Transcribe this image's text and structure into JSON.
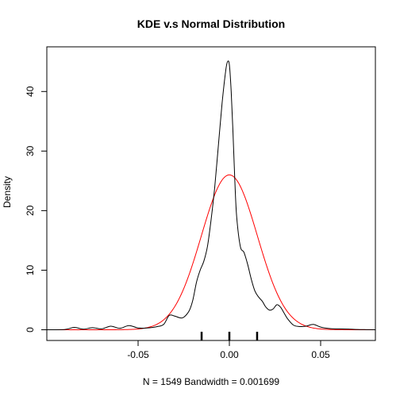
{
  "chart_data": {
    "type": "line",
    "title": "KDE v.s Normal Distribution",
    "xlabel": "N = 1549   Bandwidth = 0.001699",
    "ylabel": "Density",
    "xlim": [
      -0.1,
      0.08
    ],
    "ylim": [
      -1.8,
      47.5
    ],
    "xticks": [
      {
        "value": -0.05,
        "label": "-0.05"
      },
      {
        "value": 0.0,
        "label": "0.00"
      },
      {
        "value": 0.05,
        "label": "0.05"
      }
    ],
    "yticks": [
      {
        "value": 0,
        "label": "0"
      },
      {
        "value": 10,
        "label": "10"
      },
      {
        "value": 20,
        "label": "20"
      },
      {
        "value": 30,
        "label": "30"
      },
      {
        "value": 40,
        "label": "40"
      }
    ],
    "grid": false,
    "rug": [
      -0.0152,
      0.0,
      0.0152
    ],
    "series": [
      {
        "color": "#000000",
        "x": [
          -0.1,
          -0.09,
          -0.085,
          -0.08,
          -0.075,
          -0.07,
          -0.065,
          -0.06,
          -0.055,
          -0.05,
          -0.045,
          -0.04,
          -0.036,
          -0.033,
          -0.03,
          -0.027,
          -0.025,
          -0.022,
          -0.02,
          -0.018,
          -0.016,
          -0.014,
          -0.012,
          -0.01,
          -0.008,
          -0.006,
          -0.004,
          -0.002,
          -0.001,
          0.0,
          0.001,
          0.002,
          0.003,
          0.004,
          0.006,
          0.008,
          0.01,
          0.012,
          0.014,
          0.016,
          0.018,
          0.02,
          0.022,
          0.024,
          0.026,
          0.028,
          0.03,
          0.032,
          0.035,
          0.038,
          0.042,
          0.046,
          0.05,
          0.055,
          0.06,
          0.065,
          0.07,
          0.075,
          0.08
        ],
        "y": [
          0.0,
          0.05,
          0.4,
          0.1,
          0.35,
          0.15,
          0.6,
          0.25,
          0.7,
          0.3,
          0.3,
          0.5,
          0.9,
          2.4,
          2.3,
          2.0,
          2.1,
          3.2,
          5.0,
          8.0,
          10.0,
          11.5,
          14.0,
          18.5,
          24.0,
          31.0,
          38.0,
          43.5,
          45.0,
          44.5,
          40.0,
          33.0,
          25.0,
          19.0,
          14.0,
          13.0,
          11.0,
          8.5,
          6.5,
          5.5,
          4.8,
          3.8,
          3.3,
          3.5,
          4.2,
          3.8,
          2.8,
          1.8,
          0.8,
          0.55,
          0.6,
          0.9,
          0.45,
          0.2,
          0.15,
          0.12,
          0.05,
          0.02,
          0.0
        ]
      },
      {
        "color": "#ff0000",
        "mean": 0.0,
        "sd": 0.01535,
        "peak": 26.0
      }
    ]
  }
}
